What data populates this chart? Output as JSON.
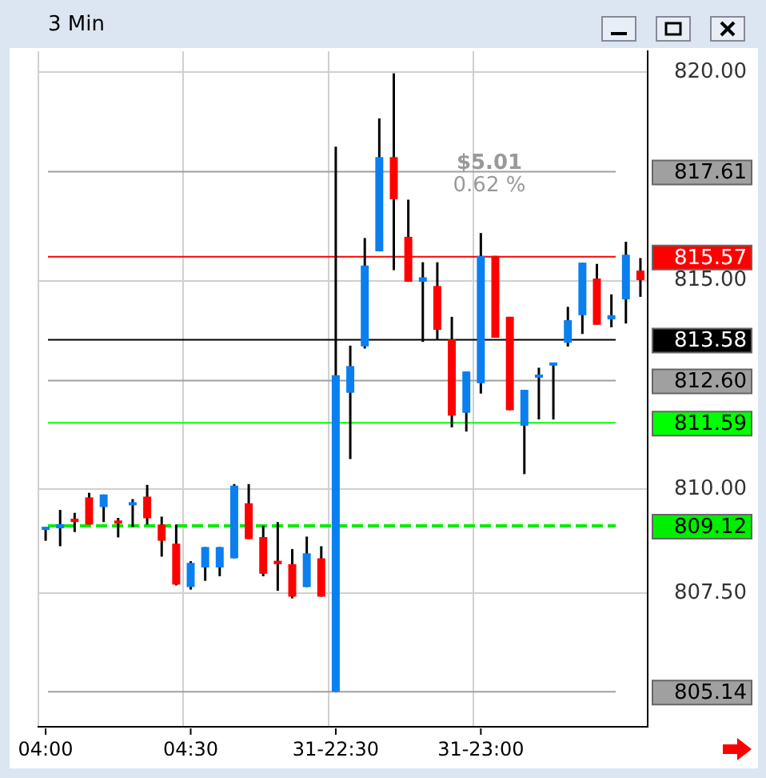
{
  "chart_data": {
    "type": "candlestick",
    "title": "3 Min",
    "categories": [
      "04:00",
      null,
      null,
      null,
      null,
      null,
      null,
      null,
      null,
      null,
      "04:30",
      null,
      null,
      null,
      null,
      null,
      null,
      null,
      null,
      null,
      "31-22:30",
      null,
      null,
      null,
      null,
      null,
      null,
      null,
      null,
      null,
      "31-23:00",
      null,
      null,
      null,
      null,
      null,
      null,
      null,
      null,
      null,
      null,
      null
    ],
    "ohlc": [
      [
        809.02,
        809.08,
        808.76,
        809.08
      ],
      [
        809.06,
        809.5,
        808.63,
        809.16
      ],
      [
        809.29,
        809.43,
        808.97,
        809.21
      ],
      [
        809.8,
        809.91,
        809.15,
        809.15
      ],
      [
        809.57,
        809.87,
        809.21,
        809.87
      ],
      [
        809.23,
        809.31,
        808.84,
        809.17
      ],
      [
        809.61,
        809.76,
        809.09,
        809.66
      ],
      [
        809.82,
        810.1,
        809.15,
        809.3
      ],
      [
        809.15,
        809.34,
        808.38,
        808.76
      ],
      [
        808.69,
        809.15,
        807.69,
        807.71
      ],
      [
        807.65,
        808.27,
        807.59,
        808.23
      ],
      [
        808.12,
        808.61,
        807.8,
        808.61
      ],
      [
        808.12,
        808.61,
        807.91,
        808.61
      ],
      [
        808.34,
        810.12,
        808.34,
        810.08
      ],
      [
        809.66,
        810.12,
        808.8,
        808.8
      ],
      [
        808.85,
        809.12,
        807.91,
        807.97
      ],
      [
        808.28,
        809.21,
        807.56,
        808.2
      ],
      [
        808.2,
        808.56,
        807.38,
        807.42
      ],
      [
        807.65,
        808.86,
        807.65,
        808.46
      ],
      [
        808.34,
        808.63,
        807.42,
        807.42
      ],
      [
        805.14,
        818.21,
        805.14,
        812.73
      ],
      [
        812.31,
        813.44,
        810.72,
        812.95
      ],
      [
        813.42,
        816.02,
        813.37,
        815.36
      ],
      [
        815.7,
        818.89,
        815.7,
        817.96
      ],
      [
        817.96,
        819.97,
        815.25,
        816.95
      ],
      [
        816.05,
        816.94,
        814.97,
        814.97
      ],
      [
        814.97,
        815.44,
        813.53,
        815.08
      ],
      [
        814.87,
        815.44,
        813.59,
        813.82
      ],
      [
        813.59,
        814.13,
        811.48,
        811.76
      ],
      [
        811.83,
        812.82,
        811.38,
        812.82
      ],
      [
        812.54,
        816.14,
        812.29,
        815.59
      ],
      [
        815.59,
        815.59,
        813.63,
        813.63
      ],
      [
        814.13,
        814.13,
        811.89,
        811.89
      ],
      [
        811.52,
        812.38,
        810.36,
        812.38
      ],
      [
        812.67,
        812.91,
        811.67,
        812.69
      ],
      [
        812.96,
        813.02,
        811.67,
        813.02
      ],
      [
        813.51,
        814.37,
        813.42,
        814.05
      ],
      [
        814.17,
        815.43,
        813.72,
        815.43
      ],
      [
        815.05,
        815.4,
        813.94,
        813.94
      ],
      [
        814.07,
        814.67,
        813.88,
        814.17
      ],
      [
        814.55,
        815.93,
        813.97,
        815.62
      ],
      [
        815.24,
        815.54,
        814.61,
        815.01
      ]
    ],
    "colors": [
      "#0a7ff0",
      "#0a7ff0",
      "#ff0000",
      "#ff0000",
      "#0a7ff0",
      "#ff0000",
      "#0a7ff0",
      "#ff0000",
      "#ff0000",
      "#ff0000",
      "#0a7ff0",
      "#0a7ff0",
      "#0a7ff0",
      "#0a7ff0",
      "#ff0000",
      "#ff0000",
      "#ff0000",
      "#ff0000",
      "#0a7ff0",
      "#ff0000",
      "#0a7ff0",
      "#0a7ff0",
      "#0a7ff0",
      "#0a7ff0",
      "#ff0000",
      "#ff0000",
      "#0a7ff0",
      "#ff0000",
      "#ff0000",
      "#0a7ff0",
      "#0a7ff0",
      "#ff0000",
      "#ff0000",
      "#0a7ff0",
      "#0a7ff0",
      "#0a7ff0",
      "#0a7ff0",
      "#0a7ff0",
      "#ff0000",
      "#0a7ff0",
      "#0a7ff0",
      "#ff0000"
    ],
    "ylim": [
      804.3,
      820.5
    ],
    "yticks": [
      {
        "value": 807.5,
        "label": "807.50"
      },
      {
        "value": 810,
        "label": "810.00"
      },
      {
        "value": 815,
        "label": "815.00"
      },
      {
        "value": 820,
        "label": "820.00"
      }
    ],
    "ref_lines": [
      {
        "axis": "y",
        "value": 817.61,
        "label": "817.61",
        "color": "#a0a0a0"
      },
      {
        "axis": "y",
        "value": 815.57,
        "label": "815.57",
        "color": "#ff0000"
      },
      {
        "axis": "y",
        "value": 813.58,
        "label": "813.58",
        "color": "#000000"
      },
      {
        "axis": "y",
        "value": 812.6,
        "label": "812.60",
        "color": "#a0a0a0"
      },
      {
        "axis": "y",
        "value": 811.59,
        "label": "811.59",
        "color": "#00ff00"
      },
      {
        "axis": "y",
        "value": 809.12,
        "label": "809.12",
        "color": "#00ee00",
        "line_style": "dashed"
      },
      {
        "axis": "y",
        "value": 805.14,
        "label": "805.14",
        "color": "#a0a0a0"
      }
    ],
    "annotations": [
      "$5.01",
      "0.62 %"
    ],
    "grid": true,
    "legend": false
  }
}
